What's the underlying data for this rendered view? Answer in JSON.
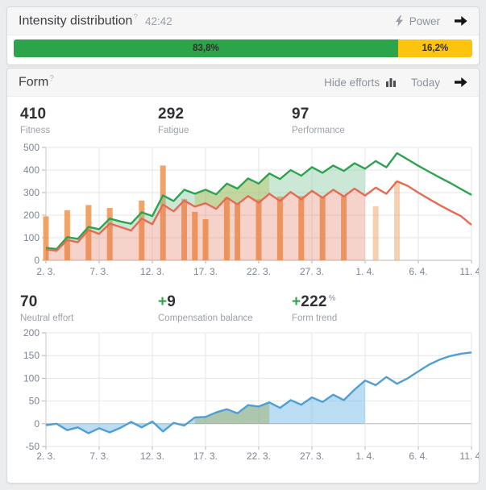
{
  "intensity_card": {
    "title": "Intensity distribution",
    "help_mark": "?",
    "duration": "42:42",
    "power_label": "Power",
    "segments": [
      {
        "label": "83,8%",
        "value": 83.8,
        "color": "#2ca449"
      },
      {
        "label": "16,2%",
        "value": 16.2,
        "color": "#fcc40f"
      }
    ]
  },
  "form_card": {
    "title": "Form",
    "help_mark": "?",
    "hide_efforts_label": "Hide efforts",
    "today_label": "Today",
    "stats_top": [
      {
        "value": "410",
        "label": "Fitness"
      },
      {
        "value": "292",
        "label": "Fatigue"
      },
      {
        "value": "97",
        "label": "Performance"
      }
    ],
    "stats_bottom": [
      {
        "sign": "",
        "value": "70",
        "unit": "",
        "label": "Neutral effort"
      },
      {
        "sign": "+",
        "value": "9",
        "unit": "",
        "label": "Compensation balance"
      },
      {
        "sign": "+",
        "value": "222",
        "unit": "%",
        "label": "Form trend"
      }
    ]
  },
  "chart_data": [
    {
      "type": "area",
      "name": "fitness-fatigue-efforts",
      "x_tick_labels": [
        "2. 3.",
        "7. 3.",
        "12. 3.",
        "17. 3.",
        "22. 3.",
        "27. 3.",
        "1. 4.",
        "6. 4.",
        "11. 4."
      ],
      "x_tick_days": [
        0,
        5,
        10,
        15,
        20,
        25,
        30,
        35,
        40
      ],
      "ylim": [
        0,
        500
      ],
      "y_ticks": [
        0,
        100,
        200,
        300,
        400,
        500
      ],
      "today_index": 30,
      "highlight_range": [
        14,
        21
      ],
      "highlight_fill": "rgba(175,180,40,0.32)",
      "fill_between": {
        "upper": "fitness",
        "lower": "fatigue",
        "band_fill": "rgba(130,200,160,0.42)",
        "lower_fill": "rgba(224,108,80,0.30)"
      },
      "series": [
        {
          "name": "efforts",
          "type": "bar",
          "color": "#ef944d",
          "planned_color": "#f3a062",
          "values": [
            195,
            null,
            222,
            null,
            245,
            null,
            232,
            null,
            null,
            265,
            null,
            420,
            null,
            272,
            215,
            182,
            null,
            278,
            255,
            null,
            270,
            null,
            283,
            null,
            285,
            null,
            280,
            null,
            285,
            null,
            null,
            240,
            null,
            350,
            null,
            null,
            null,
            null,
            null,
            null,
            null
          ]
        },
        {
          "name": "fitness",
          "type": "line",
          "color": "#2fa24f",
          "values": [
            55,
            50,
            103,
            95,
            148,
            138,
            185,
            172,
            162,
            213,
            196,
            288,
            263,
            313,
            295,
            313,
            292,
            340,
            318,
            363,
            340,
            385,
            360,
            400,
            375,
            413,
            388,
            420,
            396,
            430,
            406,
            440,
            412,
            475,
            447,
            419,
            393,
            367,
            343,
            316,
            290
          ]
        },
        {
          "name": "fatigue",
          "type": "line",
          "color": "#e76a52",
          "values": [
            48,
            42,
            90,
            80,
            135,
            117,
            163,
            148,
            132,
            185,
            160,
            247,
            217,
            265,
            238,
            253,
            228,
            278,
            248,
            285,
            255,
            295,
            263,
            303,
            270,
            308,
            277,
            313,
            283,
            318,
            287,
            322,
            295,
            350,
            330,
            300,
            272,
            245,
            220,
            196,
            157
          ]
        }
      ]
    },
    {
      "type": "line",
      "name": "form-trend",
      "x_tick_labels": [
        "2. 3.",
        "7. 3.",
        "12. 3.",
        "17. 3.",
        "22. 3.",
        "27. 3.",
        "1. 4.",
        "6. 4.",
        "11. 4."
      ],
      "x_tick_days": [
        0,
        5,
        10,
        15,
        20,
        25,
        30,
        35,
        40
      ],
      "ylim": [
        -50,
        200
      ],
      "y_ticks": [
        -50,
        0,
        50,
        100,
        150,
        200
      ],
      "today_index": 30,
      "highlight_range": [
        14,
        21
      ],
      "highlight_fill": "rgba(150,160,60,0.38)",
      "fill_to_zero": true,
      "fill_color": "rgba(120,187,233,0.5)",
      "series": [
        {
          "name": "form",
          "type": "line",
          "color": "#4f9fd5",
          "values": [
            -3,
            0,
            -14,
            -8,
            -21,
            -10,
            -19,
            -9,
            4,
            -8,
            5,
            -17,
            2,
            -4,
            14,
            15,
            25,
            32,
            23,
            41,
            38,
            47,
            35,
            52,
            42,
            58,
            48,
            64,
            52,
            75,
            95,
            85,
            103,
            88,
            100,
            115,
            130,
            141,
            149,
            154,
            157
          ]
        }
      ]
    }
  ]
}
